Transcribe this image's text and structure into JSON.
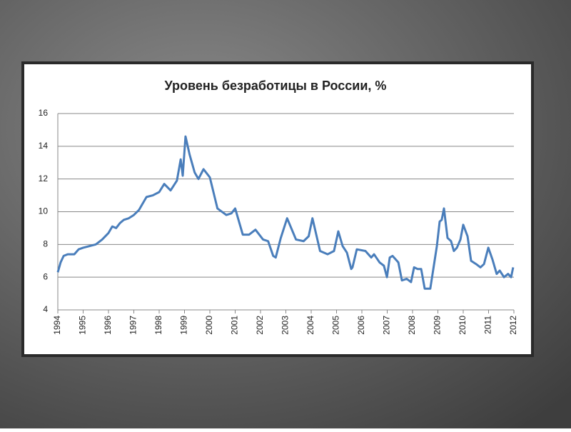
{
  "chart_data": {
    "type": "line",
    "title": "Уровень безработицы в России, %",
    "x": [
      1994.0,
      1994.11,
      1994.23,
      1994.39,
      1994.65,
      1994.82,
      1995.0,
      1995.5,
      1995.75,
      1996.0,
      1996.15,
      1996.3,
      1996.45,
      1996.6,
      1996.8,
      1997.0,
      1997.2,
      1997.35,
      1997.5,
      1997.75,
      1998.0,
      1998.2,
      1998.45,
      1998.7,
      1998.85,
      1998.93,
      1999.04,
      1999.2,
      1999.4,
      1999.55,
      1999.75,
      2000.0,
      2000.3,
      2000.65,
      2000.85,
      2001.0,
      2001.3,
      2001.55,
      2001.8,
      2002.1,
      2002.3,
      2002.5,
      2002.6,
      2002.8,
      2003.05,
      2003.4,
      2003.7,
      2003.9,
      2004.05,
      2004.35,
      2004.65,
      2004.9,
      2005.07,
      2005.24,
      2005.41,
      2005.58,
      2005.63,
      2005.8,
      2006.14,
      2006.37,
      2006.48,
      2006.7,
      2006.87,
      2006.99,
      2007.1,
      2007.21,
      2007.44,
      2007.58,
      2007.77,
      2007.94,
      2008.06,
      2008.2,
      2008.34,
      2008.48,
      2008.7,
      2008.82,
      2008.96,
      2009.07,
      2009.15,
      2009.24,
      2009.38,
      2009.52,
      2009.63,
      2009.75,
      2009.89,
      2010.0,
      2010.17,
      2010.31,
      2010.51,
      2010.68,
      2010.82,
      2010.99,
      2011.15,
      2011.32,
      2011.44,
      2011.61,
      2011.77,
      2011.89,
      2011.97
    ],
    "values": [
      6.3,
      6.9,
      7.3,
      7.4,
      7.4,
      7.7,
      7.8,
      8.0,
      8.3,
      8.7,
      9.1,
      9.0,
      9.3,
      9.5,
      9.6,
      9.8,
      10.1,
      10.5,
      10.9,
      11.0,
      11.2,
      11.7,
      11.3,
      11.9,
      13.2,
      12.2,
      14.6,
      13.5,
      12.4,
      12.0,
      12.6,
      12.1,
      10.2,
      9.8,
      9.9,
      10.2,
      8.6,
      8.6,
      8.9,
      8.3,
      8.2,
      7.3,
      7.2,
      8.4,
      9.6,
      8.3,
      8.2,
      8.5,
      9.6,
      7.6,
      7.4,
      7.6,
      8.8,
      7.9,
      7.5,
      6.5,
      6.6,
      7.7,
      7.6,
      7.2,
      7.4,
      6.9,
      6.7,
      6.0,
      7.2,
      7.3,
      6.9,
      5.8,
      5.9,
      5.7,
      6.6,
      6.5,
      6.5,
      5.3,
      5.3,
      6.5,
      7.9,
      9.4,
      9.5,
      10.2,
      8.4,
      8.2,
      7.6,
      7.8,
      8.3,
      9.2,
      8.5,
      7.0,
      6.8,
      6.6,
      6.8,
      7.8,
      7.1,
      6.2,
      6.4,
      6.0,
      6.2,
      6.0,
      6.6
    ],
    "color": "#4a7ebb",
    "xlim": [
      1994,
      2012
    ],
    "xticks": [
      1994,
      1995,
      1996,
      1997,
      1998,
      1999,
      2000,
      2001,
      2002,
      2003,
      2004,
      2005,
      2006,
      2007,
      2008,
      2009,
      2010,
      2011,
      2012
    ],
    "ylim": [
      4,
      16
    ],
    "yticks": [
      4,
      6,
      8,
      10,
      12,
      14,
      16
    ],
    "grid": true
  }
}
